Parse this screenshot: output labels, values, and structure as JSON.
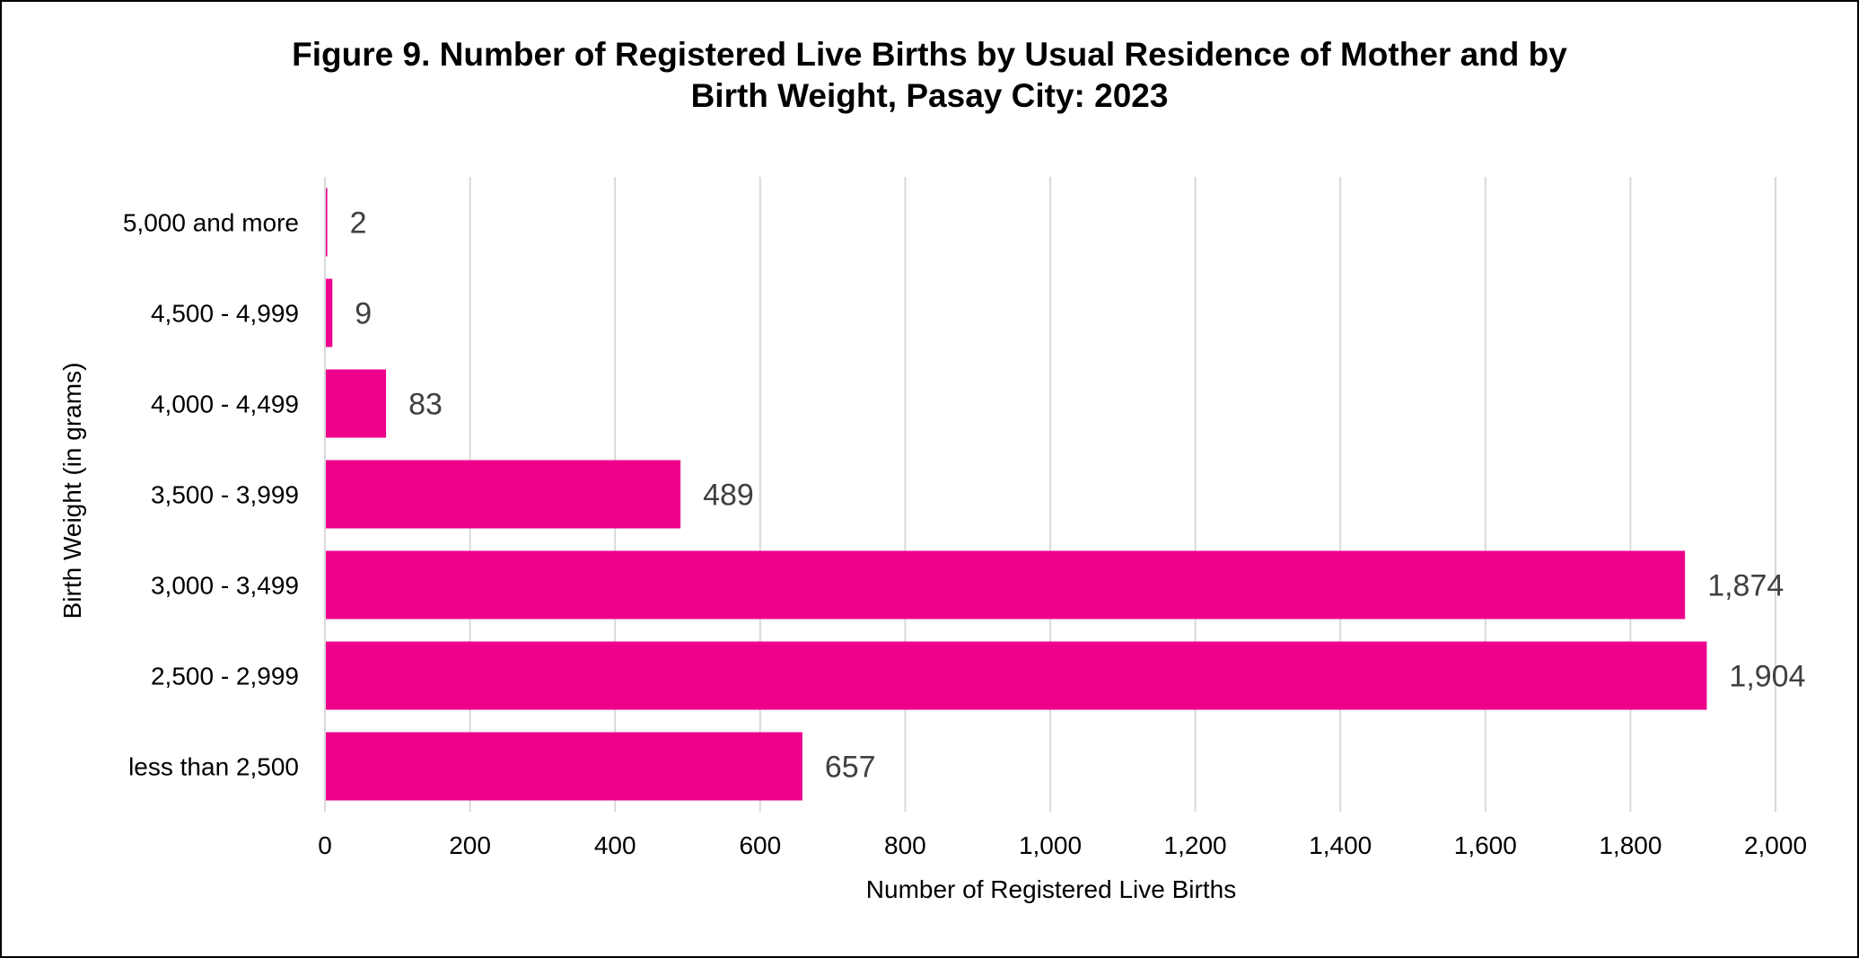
{
  "chart_data": {
    "type": "bar",
    "orientation": "horizontal",
    "title_line1": "Figure 9. Number of Registered Live Births by Usual Residence of Mother and by",
    "title_line2": "Birth Weight, Pasay City: 2023",
    "xlabel": "Number of Registered Live Births",
    "ylabel": "Birth Weight (in grams)",
    "categories": [
      "5,000 and more",
      "4,500 - 4,999",
      "4,000 - 4,499",
      "3,500 - 3,999",
      "3,000 - 3,499",
      "2,500 - 2,999",
      "less than 2,500"
    ],
    "values": [
      2,
      9,
      83,
      489,
      1874,
      1904,
      657
    ],
    "value_labels": [
      "2",
      "9",
      "83",
      "489",
      "1,874",
      "1,904",
      "657"
    ],
    "xlim": [
      0,
      2000
    ],
    "xticks": [
      0,
      200,
      400,
      600,
      800,
      1000,
      1200,
      1400,
      1600,
      1800,
      2000
    ],
    "xtick_labels": [
      "0",
      "200",
      "400",
      "600",
      "800",
      "1,000",
      "1,200",
      "1,400",
      "1,600",
      "1,800",
      "2,000"
    ],
    "grid": "vertical",
    "legend": "none",
    "bar_color": "#EC008C",
    "grid_color": "#D9D9D9"
  }
}
